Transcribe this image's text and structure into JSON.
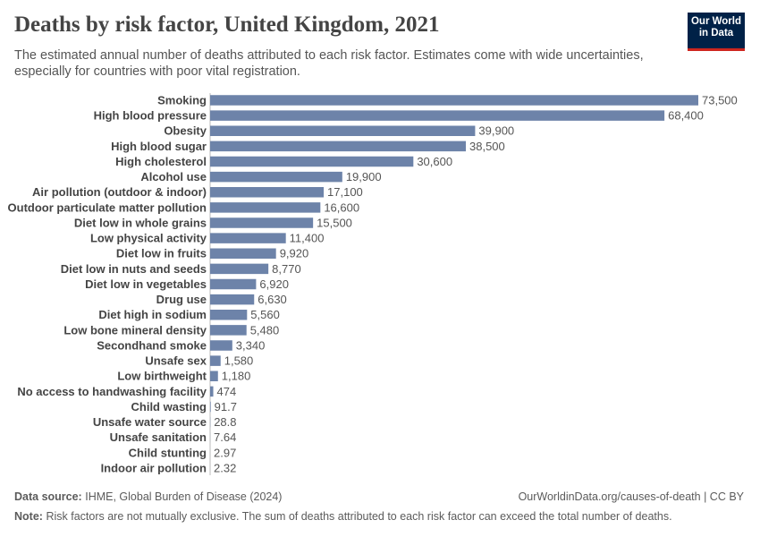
{
  "chart_data": {
    "type": "bar",
    "orientation": "horizontal",
    "title": "Deaths by risk factor, United Kingdom, 2021",
    "subtitle": "The estimated annual number of deaths attributed to each risk factor. Estimates come with wide uncertainties, especially for countries with poor vital registration.",
    "color": "#6d83a9",
    "categories": [
      "Smoking",
      "High blood pressure",
      "Obesity",
      "High blood sugar",
      "High cholesterol",
      "Alcohol use",
      "Air pollution (outdoor & indoor)",
      "Outdoor particulate matter pollution",
      "Diet low in whole grains",
      "Low physical activity",
      "Diet low in fruits",
      "Diet low in nuts and seeds",
      "Diet low in vegetables",
      "Drug use",
      "Diet high in sodium",
      "Low bone mineral density",
      "Secondhand smoke",
      "Unsafe sex",
      "Low birthweight",
      "No access to handwashing facility",
      "Child wasting",
      "Unsafe water source",
      "Unsafe sanitation",
      "Child stunting",
      "Indoor air pollution"
    ],
    "values": [
      73500,
      68400,
      39900,
      38500,
      30600,
      19900,
      17100,
      16600,
      15500,
      11400,
      9920,
      8770,
      6920,
      6630,
      5560,
      5480,
      3340,
      1580,
      1180,
      474,
      91.7,
      28.8,
      7.64,
      2.97,
      2.32
    ],
    "value_labels": [
      "73,500",
      "68,400",
      "39,900",
      "38,500",
      "30,600",
      "19,900",
      "17,100",
      "16,600",
      "15,500",
      "11,400",
      "9,920",
      "8,770",
      "6,920",
      "6,630",
      "5,560",
      "5,480",
      "3,340",
      "1,580",
      "1,180",
      "474",
      "91.7",
      "28.8",
      "7.64",
      "2.97",
      "2.32"
    ],
    "logo": [
      "Our World",
      "in Data"
    ],
    "source_label": "Data source:",
    "source": "IHME, Global Burden of Disease (2024)",
    "url": "OurWorldinData.org/causes-of-death | CC BY",
    "note_label": "Note:",
    "note": "Risk factors are not mutually exclusive. The sum of deaths attributed to each risk factor can exceed the total number of deaths."
  }
}
